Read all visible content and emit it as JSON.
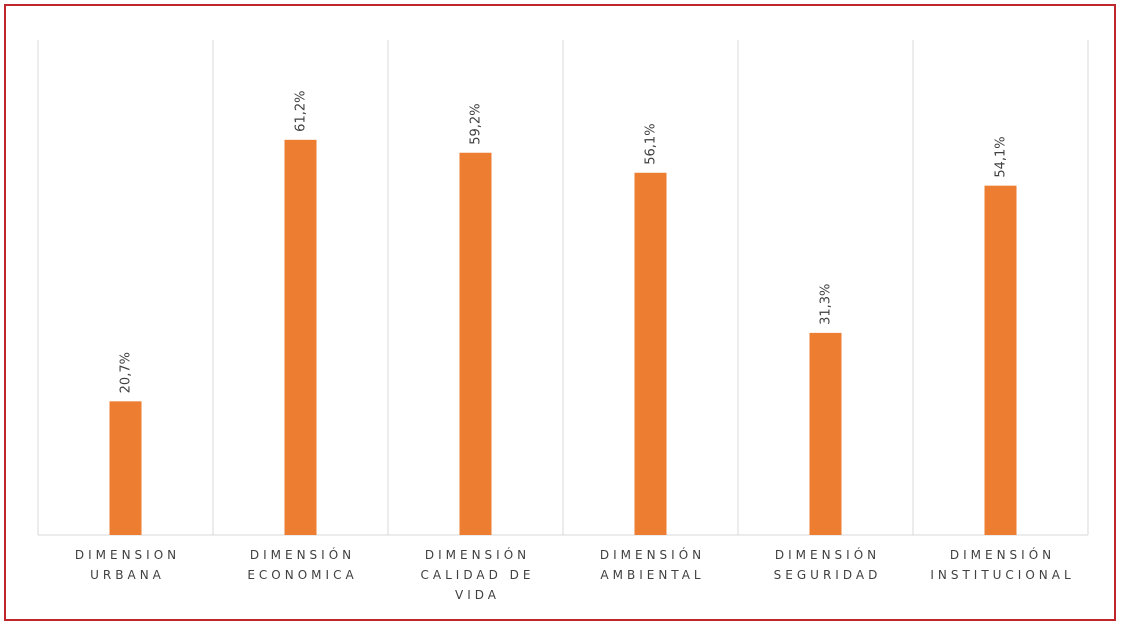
{
  "chart_data": {
    "type": "bar",
    "title": "",
    "xlabel": "",
    "ylabel": "",
    "ylim": [
      0,
      70
    ],
    "grid": {
      "vertical_category_separators": true,
      "horizontal": false
    },
    "bar_color": "#ed7d31",
    "frame_color": "#c0272d",
    "categories": [
      [
        "DIMENSION",
        "URBANA"
      ],
      [
        "DIMENSIÓN",
        "ECONOMICA"
      ],
      [
        "DIMENSIÓN",
        "CALIDAD DE",
        "VIDA"
      ],
      [
        "DIMENSIÓN",
        "AMBIENTAL"
      ],
      [
        "DIMENSIÓN",
        "SEGURIDAD"
      ],
      [
        "DIMENSIÓN",
        "INSTITUCIONAL"
      ]
    ],
    "values": [
      20.7,
      61.2,
      59.2,
      56.1,
      31.3,
      54.1
    ],
    "data_labels": [
      "20,7%",
      "61,2%",
      "59,2%",
      "56,1%",
      "31,3%",
      "54,1%"
    ]
  }
}
